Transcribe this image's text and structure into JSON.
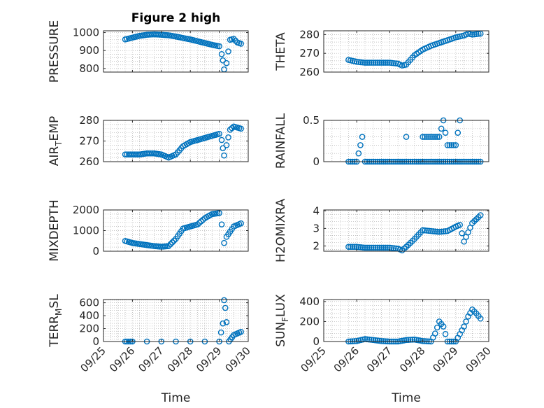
{
  "chart_data": [
    {
      "type": "scatter",
      "title": "Figure 2 high",
      "ylabel": "PRESSURE",
      "xlabel": "",
      "xlim": [
        "09/25",
        "09/30"
      ],
      "ylim": [
        780,
        1010
      ],
      "yticks": [
        "800",
        "900",
        "1000"
      ],
      "grid": true,
      "x": [
        "09/25 18:00",
        "09/26 00:00",
        "09/26 06:00",
        "09/26 12:00",
        "09/26 18:00",
        "09/27 00:00",
        "09/27 06:00",
        "09/27 12:00",
        "09/27 18:00",
        "09/28 00:00",
        "09/28 06:00",
        "09/28 12:00",
        "09/28 18:00",
        "09/29 00:00",
        "09/29 02:00",
        "09/29 03:00",
        "09/29 04:00",
        "09/29 06:00",
        "09/29 09:00",
        "09/29 12:00",
        "09/29 15:00",
        "09/29 18:00"
      ],
      "y": [
        962,
        972,
        982,
        988,
        990,
        988,
        985,
        978,
        970,
        962,
        952,
        942,
        932,
        924,
        880,
        845,
        795,
        830,
        960,
        965,
        945,
        938
      ]
    },
    {
      "type": "scatter",
      "title": "",
      "ylabel": "THETA",
      "xlabel": "",
      "xlim": [
        "09/25",
        "09/30"
      ],
      "ylim": [
        260,
        282
      ],
      "yticks": [
        "260",
        "270",
        "280"
      ],
      "grid": true,
      "x": [
        "09/25 18:00",
        "09/26 00:00",
        "09/26 06:00",
        "09/26 12:00",
        "09/26 18:00",
        "09/27 00:00",
        "09/27 06:00",
        "09/27 09:00",
        "09/27 12:00",
        "09/27 18:00",
        "09/28 00:00",
        "09/28 06:00",
        "09/28 12:00",
        "09/28 18:00",
        "09/29 00:00",
        "09/29 06:00",
        "09/29 09:00",
        "09/29 12:00",
        "09/29 18:00"
      ],
      "y": [
        266.5,
        265.5,
        265,
        265,
        265,
        265,
        264.5,
        263.5,
        264,
        269,
        272,
        274,
        275.5,
        277,
        278.5,
        279.5,
        280.5,
        280,
        280.5
      ]
    },
    {
      "type": "scatter",
      "title": "",
      "ylabel": "AIR_TEMP",
      "xlabel": "",
      "xlim": [
        "09/25",
        "09/30"
      ],
      "ylim": [
        260,
        280
      ],
      "yticks": [
        "260",
        "270",
        "280"
      ],
      "grid": true,
      "x": [
        "09/25 18:00",
        "09/26 00:00",
        "09/26 06:00",
        "09/26 12:00",
        "09/26 18:00",
        "09/27 00:00",
        "09/27 06:00",
        "09/27 12:00",
        "09/27 18:00",
        "09/28 00:00",
        "09/28 06:00",
        "09/28 12:00",
        "09/28 18:00",
        "09/29 00:00",
        "09/29 02:00",
        "09/29 03:00",
        "09/29 04:00",
        "09/29 06:00",
        "09/29 09:00",
        "09/29 12:00",
        "09/29 18:00"
      ],
      "y": [
        263.5,
        263.5,
        263.5,
        264,
        264,
        263.5,
        262,
        263.5,
        267.5,
        269.5,
        270.5,
        271.5,
        272.5,
        273.5,
        270.5,
        266.5,
        263,
        268,
        275.5,
        277,
        276
      ]
    },
    {
      "type": "scatter",
      "title": "",
      "ylabel": "RAINFALL",
      "xlabel": "",
      "xlim": [
        "09/25",
        "09/30"
      ],
      "ylim": [
        0,
        0.5
      ],
      "yticks": [
        "0",
        "0.5"
      ],
      "grid": true,
      "x": [
        "09/25 18:00",
        "09/26 00:00",
        "09/26 04:00",
        "09/26 06:00",
        "09/26 12:00",
        "09/26 18:00",
        "09/27 00:00",
        "09/27 06:00",
        "09/27 12:00",
        "09/27 18:00",
        "09/28 00:00",
        "09/28 06:00",
        "09/28 12:00",
        "09/28 18:00",
        "09/29 00:00",
        "09/29 03:00",
        "09/29 06:00",
        "09/29 12:00",
        "09/29 18:00",
        "09/27 12:00",
        "09/28 00:00",
        "09/28 06:00",
        "09/28 12:00",
        "09/28 15:00",
        "09/28 18:00",
        "09/29 00:00",
        "09/29 03:00"
      ],
      "y": [
        0,
        0,
        0.3,
        0,
        0,
        0,
        0,
        0,
        0,
        0,
        0,
        0,
        0,
        0,
        0,
        0,
        0,
        0,
        0,
        0.3,
        0.3,
        0.3,
        0.3,
        0.5,
        0.2,
        0.2,
        0.5
      ]
    },
    {
      "type": "scatter",
      "title": "",
      "ylabel": "MIXDEPTH",
      "xlabel": "",
      "xlim": [
        "09/25",
        "09/30"
      ],
      "ylim": [
        0,
        2000
      ],
      "yticks": [
        "0",
        "1000",
        "2000"
      ],
      "grid": true,
      "x": [
        "09/25 18:00",
        "09/26 00:00",
        "09/26 06:00",
        "09/26 12:00",
        "09/26 18:00",
        "09/27 00:00",
        "09/27 06:00",
        "09/27 12:00",
        "09/27 18:00",
        "09/28 00:00",
        "09/28 06:00",
        "09/28 12:00",
        "09/28 18:00",
        "09/29 00:00",
        "09/29 02:00",
        "09/29 04:00",
        "09/29 06:00",
        "09/29 12:00",
        "09/29 18:00"
      ],
      "y": [
        500,
        400,
        350,
        300,
        250,
        220,
        250,
        600,
        1100,
        1200,
        1300,
        1600,
        1800,
        1850,
        1300,
        400,
        700,
        1200,
        1350
      ]
    },
    {
      "type": "scatter",
      "title": "",
      "ylabel": "H2OMIXRA",
      "xlabel": "",
      "xlim": [
        "09/25",
        "09/30"
      ],
      "ylim": [
        1.7,
        4.05
      ],
      "yticks": [
        "2",
        "3",
        "4"
      ],
      "grid": true,
      "x": [
        "09/25 18:00",
        "09/26 00:00",
        "09/26 06:00",
        "09/26 12:00",
        "09/26 18:00",
        "09/27 00:00",
        "09/27 06:00",
        "09/27 09:00",
        "09/27 12:00",
        "09/27 18:00",
        "09/28 00:00",
        "09/28 06:00",
        "09/28 12:00",
        "09/28 18:00",
        "09/29 00:00",
        "09/29 03:00",
        "09/29 06:00",
        "09/29 12:00",
        "09/29 18:00"
      ],
      "y": [
        1.95,
        1.95,
        1.9,
        1.9,
        1.9,
        1.9,
        1.85,
        1.75,
        1.95,
        2.4,
        2.9,
        2.85,
        2.8,
        2.85,
        3.1,
        3.2,
        2.25,
        3.3,
        3.75
      ]
    },
    {
      "type": "scatter",
      "title": "",
      "ylabel": "TERR_MSL",
      "xlabel": "Time",
      "xlim": [
        "09/25",
        "09/30"
      ],
      "ylim": [
        0,
        650
      ],
      "yticks": [
        "0",
        "200",
        "400",
        "600"
      ],
      "xticks": [
        "09/25",
        "09/26",
        "09/27",
        "09/28",
        "09/29",
        "09/30"
      ],
      "grid": true,
      "x": [
        "09/25 18:00",
        "09/26 00:00",
        "09/26 12:00",
        "09/27 00:00",
        "09/27 12:00",
        "09/28 00:00",
        "09/28 12:00",
        "09/29 00:00",
        "09/29 03:00",
        "09/29 04:00",
        "09/29 05:00",
        "09/29 06:00",
        "09/29 08:00",
        "09/29 12:00",
        "09/29 18:00"
      ],
      "y": [
        0,
        0,
        0,
        0,
        0,
        0,
        0,
        0,
        280,
        640,
        520,
        300,
        0,
        100,
        150
      ]
    },
    {
      "type": "scatter",
      "title": "",
      "ylabel": "SUN_FLUX",
      "xlabel": "Time",
      "xlim": [
        "09/25",
        "09/30"
      ],
      "ylim": [
        0,
        420
      ],
      "yticks": [
        "0",
        "200",
        "400"
      ],
      "xticks": [
        "09/25",
        "09/26",
        "09/27",
        "09/28",
        "09/29",
        "09/30"
      ],
      "grid": true,
      "x": [
        "09/25 18:00",
        "09/26 00:00",
        "09/26 06:00",
        "09/26 12:00",
        "09/26 18:00",
        "09/27 00:00",
        "09/27 06:00",
        "09/27 12:00",
        "09/27 18:00",
        "09/28 00:00",
        "09/28 06:00",
        "09/28 09:00",
        "09/28 12:00",
        "09/28 15:00",
        "09/28 18:00",
        "09/29 00:00",
        "09/29 06:00",
        "09/29 09:00",
        "09/29 12:00",
        "09/29 15:00",
        "09/29 18:00"
      ],
      "y": [
        0,
        5,
        25,
        15,
        5,
        0,
        0,
        15,
        20,
        5,
        0,
        80,
        200,
        150,
        0,
        0,
        150,
        250,
        320,
        280,
        230
      ]
    }
  ]
}
